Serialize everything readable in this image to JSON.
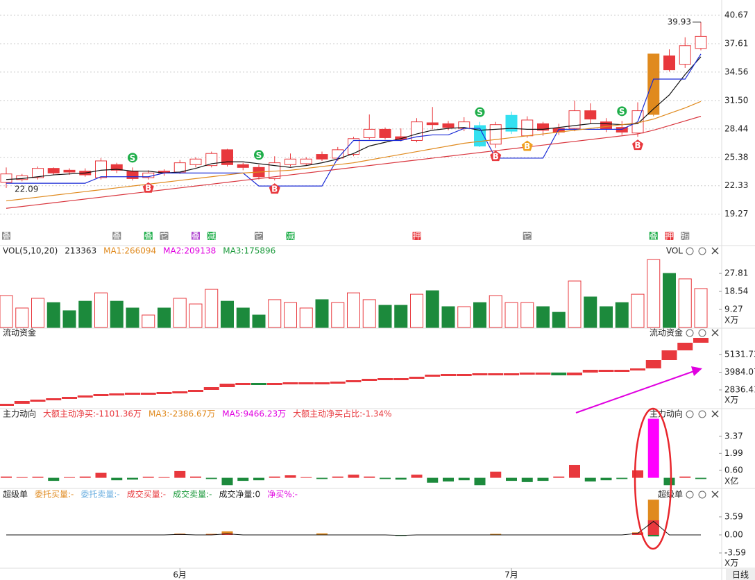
{
  "chart_data": [
    {
      "type": "candlestick",
      "color": "#e8383d",
      "ylim": [
        16.04,
        42.31
      ],
      "grid": true,
      "yticks": [
        40.67,
        37.61,
        34.56,
        {
          "value": 31.5,
          "label": "31.50"
        },
        28.44,
        25.38,
        22.33,
        19.27
      ],
      "open": [
        22.7,
        23.0,
        23.2,
        24.2,
        24.0,
        23.9,
        23.2,
        24.6,
        23.9,
        23.2,
        23.9,
        23.8,
        24.6,
        24.5,
        26.2,
        24.6,
        24.3,
        23.1,
        24.6,
        24.7,
        25.7,
        25.3,
        25.7,
        27.5,
        28.4,
        27.6,
        27.2,
        29.1,
        29.0,
        28.5,
        28.8,
        26.8,
        28.2,
        27.7,
        29.0,
        28.5,
        28.5,
        30.4,
        29.2,
        28.6,
        28.0,
        30.0,
        36.3,
        35.4,
        37.1
      ],
      "high": [
        24.3,
        23.6,
        24.4,
        24.3,
        24.2,
        24.2,
        25.3,
        24.8,
        24.3,
        24.0,
        24.1,
        25.1,
        25.4,
        26.0,
        26.3,
        24.8,
        24.6,
        25.5,
        25.8,
        25.4,
        26.0,
        26.5,
        27.6,
        30.0,
        28.6,
        28.5,
        29.6,
        30.8,
        29.3,
        29.7,
        29.2,
        29.2,
        30.3,
        29.8,
        29.2,
        29.0,
        31.5,
        31.2,
        29.6,
        29.3,
        31.3,
        36.5,
        37.0,
        38.3,
        39.93
      ],
      "low": [
        22.09,
        22.8,
        23.0,
        23.5,
        23.5,
        23.3,
        23.0,
        23.7,
        22.9,
        23.0,
        23.4,
        23.6,
        24.3,
        24.3,
        24.4,
        24.0,
        23.0,
        22.9,
        24.4,
        24.5,
        25.0,
        25.0,
        25.5,
        27.3,
        27.3,
        27.1,
        27.0,
        28.4,
        28.3,
        28.2,
        26.5,
        26.4,
        27.9,
        27.5,
        27.7,
        27.8,
        28.2,
        29.0,
        28.1,
        27.8,
        27.6,
        29.8,
        34.6,
        35.0,
        36.9
      ],
      "close": [
        23.6,
        23.4,
        24.2,
        23.7,
        23.8,
        23.5,
        25.0,
        24.0,
        23.1,
        23.7,
        23.7,
        24.8,
        25.2,
        25.8,
        24.6,
        24.3,
        23.3,
        24.8,
        25.2,
        25.2,
        25.2,
        26.2,
        27.4,
        28.4,
        27.5,
        27.3,
        29.2,
        28.9,
        28.6,
        29.2,
        26.6,
        28.9,
        29.9,
        29.4,
        28.3,
        28.1,
        30.4,
        29.5,
        28.4,
        28.1,
        30.4,
        36.5,
        34.8,
        37.4,
        38.4
      ],
      "highlights": [
        {
          "index": 30,
          "color": "#33e0f0"
        },
        {
          "index": 32,
          "color": "#33e0f0"
        },
        {
          "index": 41,
          "color": "#e08a1e"
        }
      ],
      "series": [
        {
          "color": "#111111",
          "values": [
            23.0,
            23.1,
            23.3,
            23.5,
            23.6,
            23.7,
            24.0,
            24.1,
            23.9,
            23.9,
            23.7,
            23.8,
            24.2,
            24.7,
            24.9,
            24.9,
            24.7,
            24.5,
            24.3,
            24.5,
            24.8,
            25.2,
            25.8,
            26.6,
            27.0,
            27.4,
            27.9,
            28.3,
            28.5,
            28.6,
            28.3,
            28.4,
            28.5,
            28.4,
            28.4,
            28.6,
            28.8,
            29.0,
            29.0,
            28.9,
            29.0,
            30.6,
            32.1,
            34.3,
            36.2
          ]
        },
        {
          "color": "#1a2bd6",
          "values": [
            22.6,
            22.6,
            22.6,
            22.6,
            22.6,
            22.6,
            23.3,
            23.3,
            23.3,
            23.3,
            23.7,
            23.7,
            23.7,
            23.7,
            23.7,
            23.7,
            22.3,
            22.3,
            22.3,
            22.3,
            22.3,
            25.3,
            27.2,
            27.2,
            27.2,
            27.2,
            27.6,
            27.8,
            27.8,
            28.5,
            28.5,
            25.3,
            25.3,
            25.3,
            25.3,
            28.4,
            28.4,
            28.4,
            28.4,
            28.4,
            29.2,
            33.8,
            33.8,
            33.8,
            36.5
          ]
        },
        {
          "color": "#e08a1e",
          "values": [
            20.7,
            20.9,
            21.1,
            21.3,
            21.5,
            21.7,
            21.9,
            22.1,
            22.3,
            22.5,
            22.7,
            22.9,
            23.1,
            23.3,
            23.5,
            23.7,
            23.8,
            23.9,
            24.0,
            24.2,
            24.4,
            24.6,
            24.8,
            25.1,
            25.4,
            25.7,
            26.0,
            26.3,
            26.6,
            26.9,
            27.1,
            27.3,
            27.5,
            27.7,
            27.9,
            28.1,
            28.3,
            28.5,
            28.7,
            28.9,
            29.1,
            29.5,
            30.1,
            30.7,
            31.4
          ]
        },
        {
          "color": "#d9363e",
          "values": [
            19.9,
            20.1,
            20.3,
            20.5,
            20.7,
            20.9,
            21.1,
            21.3,
            21.5,
            21.7,
            21.9,
            22.1,
            22.3,
            22.5,
            22.7,
            22.9,
            23.1,
            23.3,
            23.5,
            23.7,
            23.9,
            24.1,
            24.3,
            24.5,
            24.7,
            24.9,
            25.1,
            25.3,
            25.5,
            25.7,
            25.9,
            26.1,
            26.3,
            26.5,
            26.7,
            26.9,
            27.1,
            27.3,
            27.5,
            27.7,
            27.9,
            28.3,
            28.8,
            29.3,
            29.8
          ]
        }
      ],
      "signals": [
        {
          "index": 8,
          "label": "S",
          "color": "#1fae4a"
        },
        {
          "index": 9,
          "label": "B",
          "color": "#e8383d"
        },
        {
          "index": 16,
          "label": "S",
          "color": "#1fae4a"
        },
        {
          "index": 17,
          "label": "B",
          "color": "#e8383d"
        },
        {
          "index": 30,
          "label": "S",
          "color": "#1fae4a"
        },
        {
          "index": 31,
          "label": "B",
          "color": "#e8383d"
        },
        {
          "index": 33,
          "label": "B",
          "color": "#f0a020"
        },
        {
          "index": 39,
          "label": "S",
          "color": "#1fae4a"
        },
        {
          "index": 40,
          "label": "B",
          "color": "#e8383d"
        }
      ],
      "icons": [
        {
          "index": 0,
          "label": "叠",
          "color": "#8a8a8a"
        },
        {
          "index": 7,
          "label": "叠",
          "color": "#8a8a8a"
        },
        {
          "index": 9,
          "label": "叠",
          "color": "#1fae4a"
        },
        {
          "index": 10,
          "label": "它",
          "color": "#8a8a8a"
        },
        {
          "index": 12,
          "label": "叠",
          "color": "#b04ad0"
        },
        {
          "index": 13,
          "label": "减",
          "color": "#1fae4a"
        },
        {
          "index": 16,
          "label": "它",
          "color": "#8a8a8a"
        },
        {
          "index": 18,
          "label": "减",
          "color": "#1fae4a"
        },
        {
          "index": 26,
          "label": "押",
          "color": "#e8383d"
        },
        {
          "index": 33,
          "label": "它",
          "color": "#8a8a8a"
        },
        {
          "index": 41,
          "label": "叠",
          "color": "#1fae4a"
        },
        {
          "index": 42,
          "label": "押",
          "color": "#e8383d"
        },
        {
          "index": 43,
          "label": "短",
          "color": "#8a8a8a"
        }
      ],
      "categories": [
        null,
        null,
        null,
        null,
        null,
        null,
        null,
        null,
        null,
        null,
        null,
        "6月",
        null,
        null,
        null,
        null,
        null,
        null,
        null,
        null,
        null,
        null,
        null,
        null,
        null,
        null,
        null,
        null,
        null,
        null,
        null,
        null,
        "7月",
        null,
        null,
        null,
        null,
        null,
        null,
        null,
        null,
        null,
        null,
        null,
        null
      ],
      "period": "日线"
    },
    {
      "type": "volume",
      "title": "VOL(5,10,20)",
      "label": "VOL",
      "unit": "X万",
      "ylim": [
        0,
        36.4
      ],
      "yticks": [
        9.27,
        18.54,
        27.81
      ],
      "header": [
        {
          "text": "213363",
          "color": "#222222"
        },
        {
          "text": "MA1:266094",
          "color": "#e08a1e"
        },
        {
          "text": "MA2:209138",
          "color": "#e000e0"
        },
        {
          "text": "MA3:175896",
          "color": "#1c9a3c"
        }
      ],
      "up_color": "#e8383d",
      "down_color": "#1c8a3c",
      "values": [
        16.4,
        10.0,
        15.0,
        12.8,
        8.6,
        13.5,
        17.8,
        13.5,
        10.0,
        6.4,
        10.0,
        15.0,
        12.1,
        19.6,
        13.5,
        10.0,
        6.4,
        14.3,
        12.8,
        10.0,
        14.3,
        12.8,
        17.8,
        14.3,
        11.4,
        11.4,
        17.1,
        18.9,
        10.7,
        10.7,
        12.8,
        16.4,
        12.8,
        12.8,
        10.7,
        7.8,
        23.9,
        15.7,
        10.7,
        12.8,
        17.1,
        34.9,
        27.8,
        25.0,
        20.0
      ]
    },
    {
      "type": "flow",
      "title": "流动资金",
      "unit": "X万",
      "ylim": [
        1666,
        6301
      ],
      "yticks": [
        2836.41,
        3984.07,
        5131.73
      ],
      "up_color": "#e8383d",
      "down_color": "#1c8a3c",
      "values": [
        1936,
        2116,
        2206,
        2296,
        2386,
        2476,
        2566,
        2611,
        2656,
        2656,
        2701,
        2746,
        2836,
        3016,
        3241,
        3286,
        3196,
        3286,
        3331,
        3331,
        3331,
        3376,
        3466,
        3556,
        3601,
        3601,
        3691,
        3826,
        3871,
        3871,
        3916,
        3916,
        3916,
        3961,
        3961,
        3781,
        3961,
        4141,
        4141,
        4141,
        4231,
        4771,
        5401,
        5896,
        6211
      ]
    },
    {
      "type": "bar",
      "title": "主力动向",
      "unit": "X亿",
      "ylim": [
        -0.64,
        5.0
      ],
      "yticks": [
        {
          "value": 0.6,
          "label": "0.60"
        },
        1.99,
        3.37
      ],
      "up_color": "#e8383d",
      "down_color": "#1c8a3c",
      "header": [
        {
          "text": "大额主动净买:-1101.36万",
          "color": "#e8383d"
        },
        {
          "text": "MA3:-2386.67万",
          "color": "#e08a1e"
        },
        {
          "text": "MA5:9466.23万",
          "color": "#e000e0"
        },
        {
          "text": "大额主动净买占比:-1.34%",
          "color": "#e8383d"
        }
      ],
      "highlights": [
        {
          "index": 41,
          "color": "#ff00ff"
        }
      ],
      "values": [
        0.1,
        0.05,
        0.08,
        -0.25,
        0.05,
        0.1,
        0.4,
        -0.2,
        -0.15,
        0.08,
        0.05,
        0.55,
        0.1,
        -0.1,
        -0.6,
        -0.25,
        -0.2,
        0.1,
        0.2,
        0.05,
        -0.1,
        0.1,
        0.25,
        0.1,
        -0.1,
        -0.15,
        0.25,
        -0.4,
        -0.3,
        -0.2,
        -0.6,
        0.5,
        -0.25,
        -0.35,
        -0.25,
        0.1,
        1.05,
        -0.3,
        -0.2,
        -0.1,
        0.6,
        4.8,
        -0.6,
        0.1,
        -0.1
      ]
    },
    {
      "type": "multi",
      "title": "超级单",
      "unit": "X万",
      "ylim": [
        -5.66,
        7.45
      ],
      "yticks": [
        -3.59,
        {
          "value": 0,
          "label": "0.00"
        },
        3.59
      ],
      "header": [
        {
          "text": "委托买量:-",
          "color": "#e08a1e"
        },
        {
          "text": "委托卖量:-",
          "color": "#6aaee0"
        },
        {
          "text": "成交买量:-",
          "color": "#e8383d"
        },
        {
          "text": "成交卖量:-",
          "color": "#1c9a3c"
        },
        {
          "text": "成交净量:0",
          "color": "#222222"
        },
        {
          "text": "净买%:-",
          "color": "#e000e0"
        }
      ],
      "series": [
        {
          "type": "bar",
          "color": "#e08a1e",
          "values": [
            0,
            0,
            0,
            0,
            0,
            0,
            0,
            0,
            0,
            0,
            0,
            0.25,
            0,
            0.2,
            0.7,
            0,
            0,
            0,
            0,
            0,
            0.3,
            0,
            0,
            0,
            0,
            0,
            0,
            0,
            0,
            0,
            0,
            0.2,
            0,
            0,
            0,
            0,
            0,
            0,
            0,
            0,
            0.5,
            7.0,
            0,
            0,
            0
          ]
        },
        {
          "type": "bar",
          "color": "#e8383d",
          "values": [
            0,
            0,
            0,
            0,
            0,
            0,
            0,
            0,
            0,
            0,
            0,
            0.15,
            0,
            0.1,
            0.3,
            0,
            0,
            0,
            0,
            0,
            0,
            0,
            0,
            0,
            0,
            0,
            0,
            0,
            0,
            0,
            0,
            0,
            0,
            0,
            0,
            0,
            0,
            0,
            0,
            0,
            0.4,
            2.9,
            0,
            0,
            0
          ]
        },
        {
          "type": "bar",
          "color": "#1c8a3c",
          "values": [
            0,
            0,
            0,
            0,
            0,
            0,
            0,
            0,
            0,
            0,
            0,
            0,
            0,
            0,
            0,
            0,
            0,
            0,
            0,
            0,
            0,
            0,
            0,
            0,
            0,
            -0.2,
            0,
            0,
            0,
            0,
            0,
            0,
            0,
            0,
            0,
            0,
            0,
            0,
            0,
            0,
            0,
            -0.3,
            0,
            0,
            0
          ]
        },
        {
          "type": "line",
          "color": "#111111",
          "values": [
            0,
            0,
            0,
            0,
            0,
            0,
            0,
            0,
            0,
            0,
            0,
            0.1,
            0,
            0,
            0.2,
            0,
            0,
            0,
            0,
            0,
            0,
            0,
            0,
            0,
            0,
            -0.1,
            0,
            0,
            0,
            0,
            0,
            0,
            0,
            0,
            0,
            0,
            0,
            0,
            0,
            0,
            0.3,
            2.7,
            0,
            0,
            0
          ]
        }
      ]
    }
  ]
}
